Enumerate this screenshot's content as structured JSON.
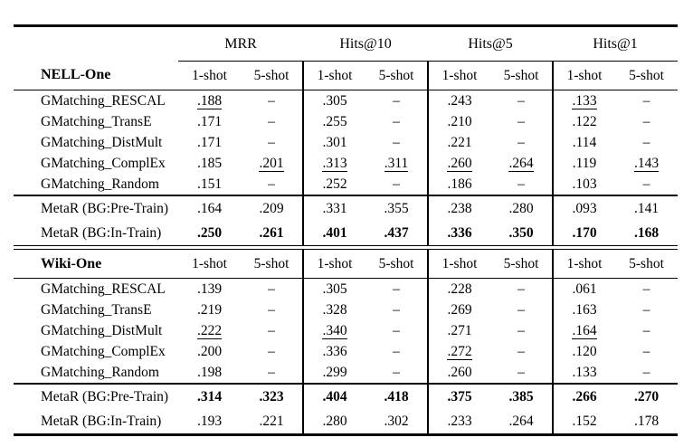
{
  "page": {
    "background": "#ffffff",
    "text_color": "#000000",
    "rule_color": "#000000"
  },
  "table": {
    "column_groups": [
      {
        "label": "MRR"
      },
      {
        "label": "Hits@10"
      },
      {
        "label": "Hits@5"
      },
      {
        "label": "Hits@1"
      }
    ],
    "subcolumns": [
      "1-shot",
      "5-shot"
    ],
    "missing_value": "–",
    "sections": [
      {
        "dataset": "NELL-One",
        "groups": [
          {
            "name": "gmatching-baselines",
            "rows": [
              {
                "label": "GMatching_RESCAL",
                "values": [
                  ".188",
                  "–",
                  ".305",
                  "–",
                  ".243",
                  "–",
                  ".133",
                  "–"
                ],
                "styles": [
                  "u",
                  "",
                  "",
                  "",
                  "",
                  "",
                  "u",
                  ""
                ]
              },
              {
                "label": "GMatching_TransE",
                "values": [
                  ".171",
                  "–",
                  ".255",
                  "–",
                  ".210",
                  "–",
                  ".122",
                  "–"
                ],
                "styles": [
                  "",
                  "",
                  "",
                  "",
                  "",
                  "",
                  "",
                  ""
                ]
              },
              {
                "label": "GMatching_DistMult",
                "values": [
                  ".171",
                  "–",
                  ".301",
                  "–",
                  ".221",
                  "–",
                  ".114",
                  "–"
                ],
                "styles": [
                  "",
                  "",
                  "",
                  "",
                  "",
                  "",
                  "",
                  ""
                ]
              },
              {
                "label": "GMatching_ComplEx",
                "values": [
                  ".185",
                  ".201",
                  ".313",
                  ".311",
                  ".260",
                  ".264",
                  ".119",
                  ".143"
                ],
                "styles": [
                  "",
                  "u",
                  "u",
                  "u",
                  "u",
                  "u",
                  "",
                  "u"
                ]
              },
              {
                "label": "GMatching_Random",
                "values": [
                  ".151",
                  "–",
                  ".252",
                  "–",
                  ".186",
                  "–",
                  ".103",
                  "–"
                ],
                "styles": [
                  "",
                  "",
                  "",
                  "",
                  "",
                  "",
                  "",
                  ""
                ]
              }
            ]
          },
          {
            "name": "metar",
            "rows": [
              {
                "label": "MetaR (BG:Pre-Train)",
                "values": [
                  ".164",
                  ".209",
                  ".331",
                  ".355",
                  ".238",
                  ".280",
                  ".093",
                  ".141"
                ],
                "styles": [
                  "",
                  "",
                  "",
                  "",
                  "",
                  "",
                  "",
                  ""
                ]
              },
              {
                "label": "MetaR (BG:In-Train)",
                "values": [
                  ".250",
                  ".261",
                  ".401",
                  ".437",
                  ".336",
                  ".350",
                  ".170",
                  ".168"
                ],
                "styles": [
                  "b",
                  "b",
                  "b",
                  "b",
                  "b",
                  "b",
                  "b",
                  "b"
                ]
              }
            ]
          }
        ]
      },
      {
        "dataset": "Wiki-One",
        "groups": [
          {
            "name": "gmatching-baselines",
            "rows": [
              {
                "label": "GMatching_RESCAL",
                "values": [
                  ".139",
                  "–",
                  ".305",
                  "–",
                  ".228",
                  "–",
                  ".061",
                  "–"
                ],
                "styles": [
                  "",
                  "",
                  "",
                  "",
                  "",
                  "",
                  "",
                  ""
                ]
              },
              {
                "label": "GMatching_TransE",
                "values": [
                  ".219",
                  "–",
                  ".328",
                  "–",
                  ".269",
                  "–",
                  ".163",
                  "–"
                ],
                "styles": [
                  "",
                  "",
                  "",
                  "",
                  "",
                  "",
                  "",
                  ""
                ]
              },
              {
                "label": "GMatching_DistMult",
                "values": [
                  ".222",
                  "–",
                  ".340",
                  "–",
                  ".271",
                  "–",
                  ".164",
                  "–"
                ],
                "styles": [
                  "u",
                  "",
                  "u",
                  "",
                  "",
                  "",
                  "u",
                  ""
                ]
              },
              {
                "label": "GMatching_ComplEx",
                "values": [
                  ".200",
                  "–",
                  ".336",
                  "–",
                  ".272",
                  "–",
                  ".120",
                  "–"
                ],
                "styles": [
                  "",
                  "",
                  "",
                  "",
                  "u",
                  "",
                  "",
                  ""
                ]
              },
              {
                "label": "GMatching_Random",
                "values": [
                  ".198",
                  "–",
                  ".299",
                  "–",
                  ".260",
                  "–",
                  ".133",
                  "–"
                ],
                "styles": [
                  "",
                  "",
                  "",
                  "",
                  "",
                  "",
                  "",
                  ""
                ]
              }
            ]
          },
          {
            "name": "metar",
            "rows": [
              {
                "label": "MetaR (BG:Pre-Train)",
                "values": [
                  ".314",
                  ".323",
                  ".404",
                  ".418",
                  ".375",
                  ".385",
                  ".266",
                  ".270"
                ],
                "styles": [
                  "b",
                  "b",
                  "b",
                  "b",
                  "b",
                  "b",
                  "b",
                  "b"
                ]
              },
              {
                "label": "MetaR (BG:In-Train)",
                "values": [
                  ".193",
                  ".221",
                  ".280",
                  ".302",
                  ".233",
                  ".264",
                  ".152",
                  ".178"
                ],
                "styles": [
                  "",
                  "",
                  "",
                  "",
                  "",
                  "",
                  "",
                  ""
                ]
              }
            ]
          }
        ]
      }
    ]
  }
}
